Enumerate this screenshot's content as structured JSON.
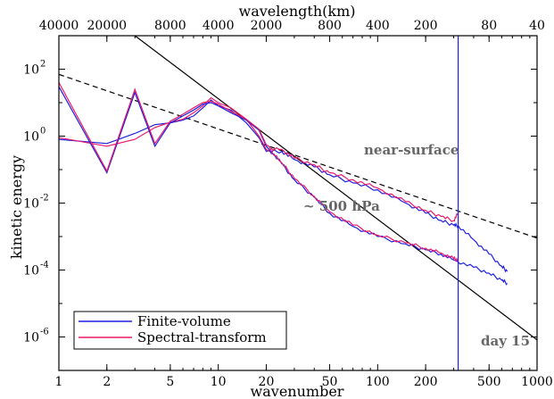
{
  "chart_data": {
    "type": "line",
    "x_scale": "log",
    "y_scale": "log",
    "xlabel": "wavenumber",
    "ylabel": "kinetic energy",
    "top_axis_label": "wavelength(km)",
    "xlim": [
      1,
      1000
    ],
    "ylim": [
      1e-07,
      1000
    ],
    "x_ticks": [
      1,
      2,
      5,
      10,
      20,
      50,
      100,
      200,
      500,
      1000
    ],
    "x_tick_labels": [
      "1",
      "2",
      "5",
      "10",
      "20",
      "50",
      "100",
      "200",
      "500",
      "1000"
    ],
    "top_tick_labels": [
      "40000",
      "20000",
      "8000",
      "4000",
      "2000",
      "800",
      "400",
      "200",
      "80",
      "40"
    ],
    "y_ticks": [
      {
        "base": "10",
        "exp": "2"
      },
      {
        "base": "10",
        "exp": "0"
      },
      {
        "base": "10",
        "exp": "-2"
      },
      {
        "base": "10",
        "exp": "-4"
      },
      {
        "base": "10",
        "exp": "-6"
      }
    ],
    "legend": [
      {
        "label": "Finite-volume",
        "color": "#1f1fdd"
      },
      {
        "label": "Spectral-transform",
        "color": "#e8196a"
      }
    ],
    "annotations": {
      "near_surface": "near-surface",
      "mid_level": "~ 500 hPa",
      "day": "day 15"
    },
    "reference_lines": [
      {
        "style": "solid",
        "color": "#000000",
        "points": [
          [
            3,
            1000
          ],
          [
            1000,
            8.2e-07
          ]
        ]
      },
      {
        "style": "dashed",
        "color": "#000000",
        "points": [
          [
            1,
            70
          ],
          [
            1000,
            0.0009
          ]
        ]
      }
    ],
    "vertical_line": {
      "x": 320,
      "color": "#1f1fdd"
    },
    "series": [
      {
        "key": "fv_surface",
        "color": "#1f1fdd",
        "x": [
          1,
          2,
          3,
          4,
          5,
          6,
          7,
          8,
          9,
          10,
          12,
          15,
          18,
          20,
          25,
          30,
          40,
          50,
          70,
          100,
          150,
          200,
          250,
          300,
          320
        ],
        "y": [
          0.8,
          0.6,
          1.2,
          2.2,
          2.5,
          3,
          4,
          7,
          12,
          8,
          6,
          2.5,
          0.9,
          0.35,
          0.35,
          0.2,
          0.12,
          0.07,
          0.04,
          0.025,
          0.01,
          0.005,
          0.003,
          0.0022,
          0.0021
        ]
      },
      {
        "key": "st_surface",
        "color": "#e8196a",
        "x": [
          1,
          2,
          3,
          4,
          5,
          6,
          7,
          8,
          9,
          10,
          12,
          15,
          18,
          20,
          25,
          30,
          40,
          50,
          70,
          100,
          150,
          200,
          250,
          300,
          320
        ],
        "y": [
          0.9,
          0.5,
          0.8,
          1.8,
          2.6,
          3.2,
          5,
          8,
          14,
          10,
          7,
          3.2,
          1.0,
          0.4,
          0.4,
          0.22,
          0.14,
          0.08,
          0.05,
          0.028,
          0.011,
          0.006,
          0.004,
          0.003,
          0.005
        ]
      },
      {
        "key": "fv_500",
        "color": "#1f1fdd",
        "x": [
          1,
          2,
          3,
          4,
          5,
          6,
          7,
          8,
          9,
          10,
          12,
          15,
          18,
          20,
          25,
          30,
          40,
          50,
          70,
          100,
          150,
          200,
          250,
          300,
          400,
          500,
          600,
          650
        ],
        "y": [
          30,
          0.08,
          20,
          0.5,
          2.5,
          4,
          6,
          9,
          10,
          8,
          5,
          3,
          1.5,
          0.5,
          0.15,
          0.05,
          0.015,
          0.005,
          0.002,
          0.001,
          0.0006,
          0.0004,
          0.0003,
          0.0002,
          0.00012,
          8e-05,
          5e-05,
          4e-05
        ]
      },
      {
        "key": "st_500",
        "color": "#e8196a",
        "x": [
          1,
          2,
          3,
          4,
          5,
          6,
          7,
          8,
          9,
          10,
          12,
          15,
          18,
          20,
          25,
          30,
          40,
          50,
          70,
          100,
          150,
          200,
          250,
          300,
          320
        ],
        "y": [
          40,
          0.09,
          25,
          0.6,
          2.8,
          4.5,
          7,
          10,
          11,
          9,
          5.5,
          3.2,
          1.6,
          0.55,
          0.16,
          0.055,
          0.016,
          0.0055,
          0.0022,
          0.0011,
          0.00065,
          0.00045,
          0.00032,
          0.00022,
          0.0002
        ]
      },
      {
        "key": "fv_surface_tail",
        "color": "#1f1fdd",
        "x": [
          320,
          400,
          500,
          600,
          650
        ],
        "y": [
          0.0021,
          0.0008,
          0.0003,
          0.00013,
          9e-05
        ]
      }
    ]
  }
}
